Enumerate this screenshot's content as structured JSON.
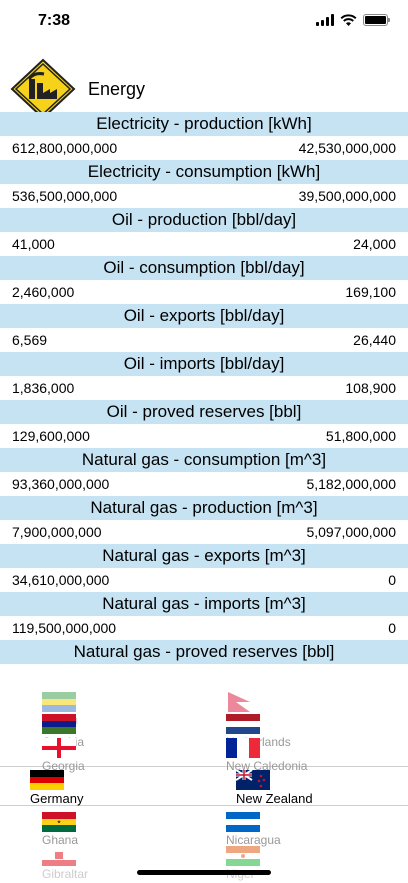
{
  "status": {
    "time": "7:38"
  },
  "header": {
    "title": "Energy",
    "logo_icon": "factory-sign-icon"
  },
  "colors": {
    "section_bg": "#c5e3f3",
    "logo_yellow": "#f6d21b"
  },
  "sections": [
    {
      "title": "Electricity - production [kWh]",
      "left": "612,800,000,000",
      "right": "42,530,000,000"
    },
    {
      "title": "Electricity - consumption [kWh]",
      "left": "536,500,000,000",
      "right": "39,500,000,000"
    },
    {
      "title": "Oil - production [bbl/day]",
      "left": "41,000",
      "right": "24,000"
    },
    {
      "title": "Oil - consumption [bbl/day]",
      "left": "2,460,000",
      "right": "169,100"
    },
    {
      "title": "Oil - exports [bbl/day]",
      "left": "6,569",
      "right": "26,440"
    },
    {
      "title": "Oil - imports [bbl/day]",
      "left": "1,836,000",
      "right": "108,900"
    },
    {
      "title": "Oil - proved reserves [bbl]",
      "left": "129,600,000",
      "right": "51,800,000"
    },
    {
      "title": "Natural gas - consumption [m^3]",
      "left": "93,360,000,000",
      "right": "5,182,000,000"
    },
    {
      "title": "Natural gas - production [m^3]",
      "left": "7,900,000,000",
      "right": "5,097,000,000"
    },
    {
      "title": "Natural gas - exports [m^3]",
      "left": "34,610,000,000",
      "right": "0"
    },
    {
      "title": "Natural gas - imports [m^3]",
      "left": "119,500,000,000",
      "right": "0"
    },
    {
      "title": "Natural gas - proved reserves [bbl]",
      "left": "",
      "right": ""
    }
  ],
  "picker": {
    "left": {
      "above": [
        "Gabon",
        "Gambia",
        "Georgia"
      ],
      "selected": "Germany",
      "below": [
        "Ghana",
        "Gibraltar"
      ]
    },
    "right": {
      "above": [
        "Nepal",
        "Netherlands",
        "New Caledonia"
      ],
      "selected": "New Zealand",
      "below": [
        "Nicaragua",
        "Niger"
      ]
    }
  }
}
